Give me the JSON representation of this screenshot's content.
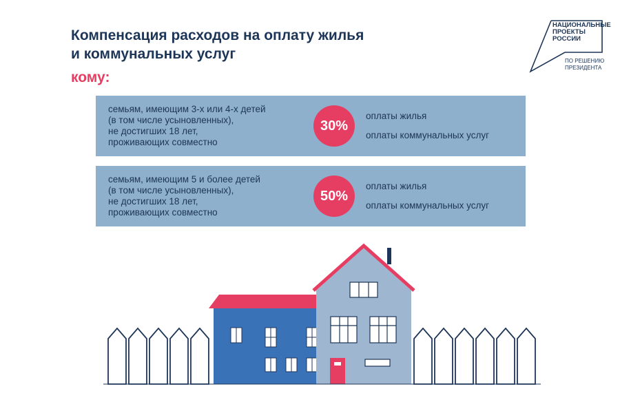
{
  "header": {
    "title_line1": "Компенсация расходов на оплату жилья",
    "title_line2": "и коммунальных услуг",
    "komu": "кому:"
  },
  "logo": {
    "line1": "НАЦИОНАЛЬНЫЕ",
    "line2": "ПРОЕКТЫ",
    "line3": "РОССИИ",
    "sub1": "ПО РЕШЕНИЮ",
    "sub2": "ПРЕЗИДЕНТА"
  },
  "cards": [
    {
      "lines": [
        "семьям, имеющим 3-х или 4-х детей",
        "(в том числе усыновленных),",
        "не достигших 18 лет,",
        "проживающих совместно"
      ],
      "percent": "30%",
      "option1": "оплаты жилья",
      "option2": "оплаты коммунальных услуг"
    },
    {
      "lines": [
        "семьям, имеющим 5 и более детей",
        "(в том числе усыновленных),",
        "не достигших 18 лет,",
        "проживающих совместно"
      ],
      "percent": "50%",
      "option1": "оплаты жилья",
      "option2": "оплаты коммунальных услуг"
    }
  ],
  "colors": {
    "navy": "#1d3557",
    "accent_red": "#e63e62",
    "card_blue": "#8fb0cc",
    "house_dark_blue": "#3a72b8",
    "house_light_blue": "#9eb6cf"
  },
  "illustration": {
    "icons": [
      "fence-icon",
      "house-icon"
    ]
  }
}
